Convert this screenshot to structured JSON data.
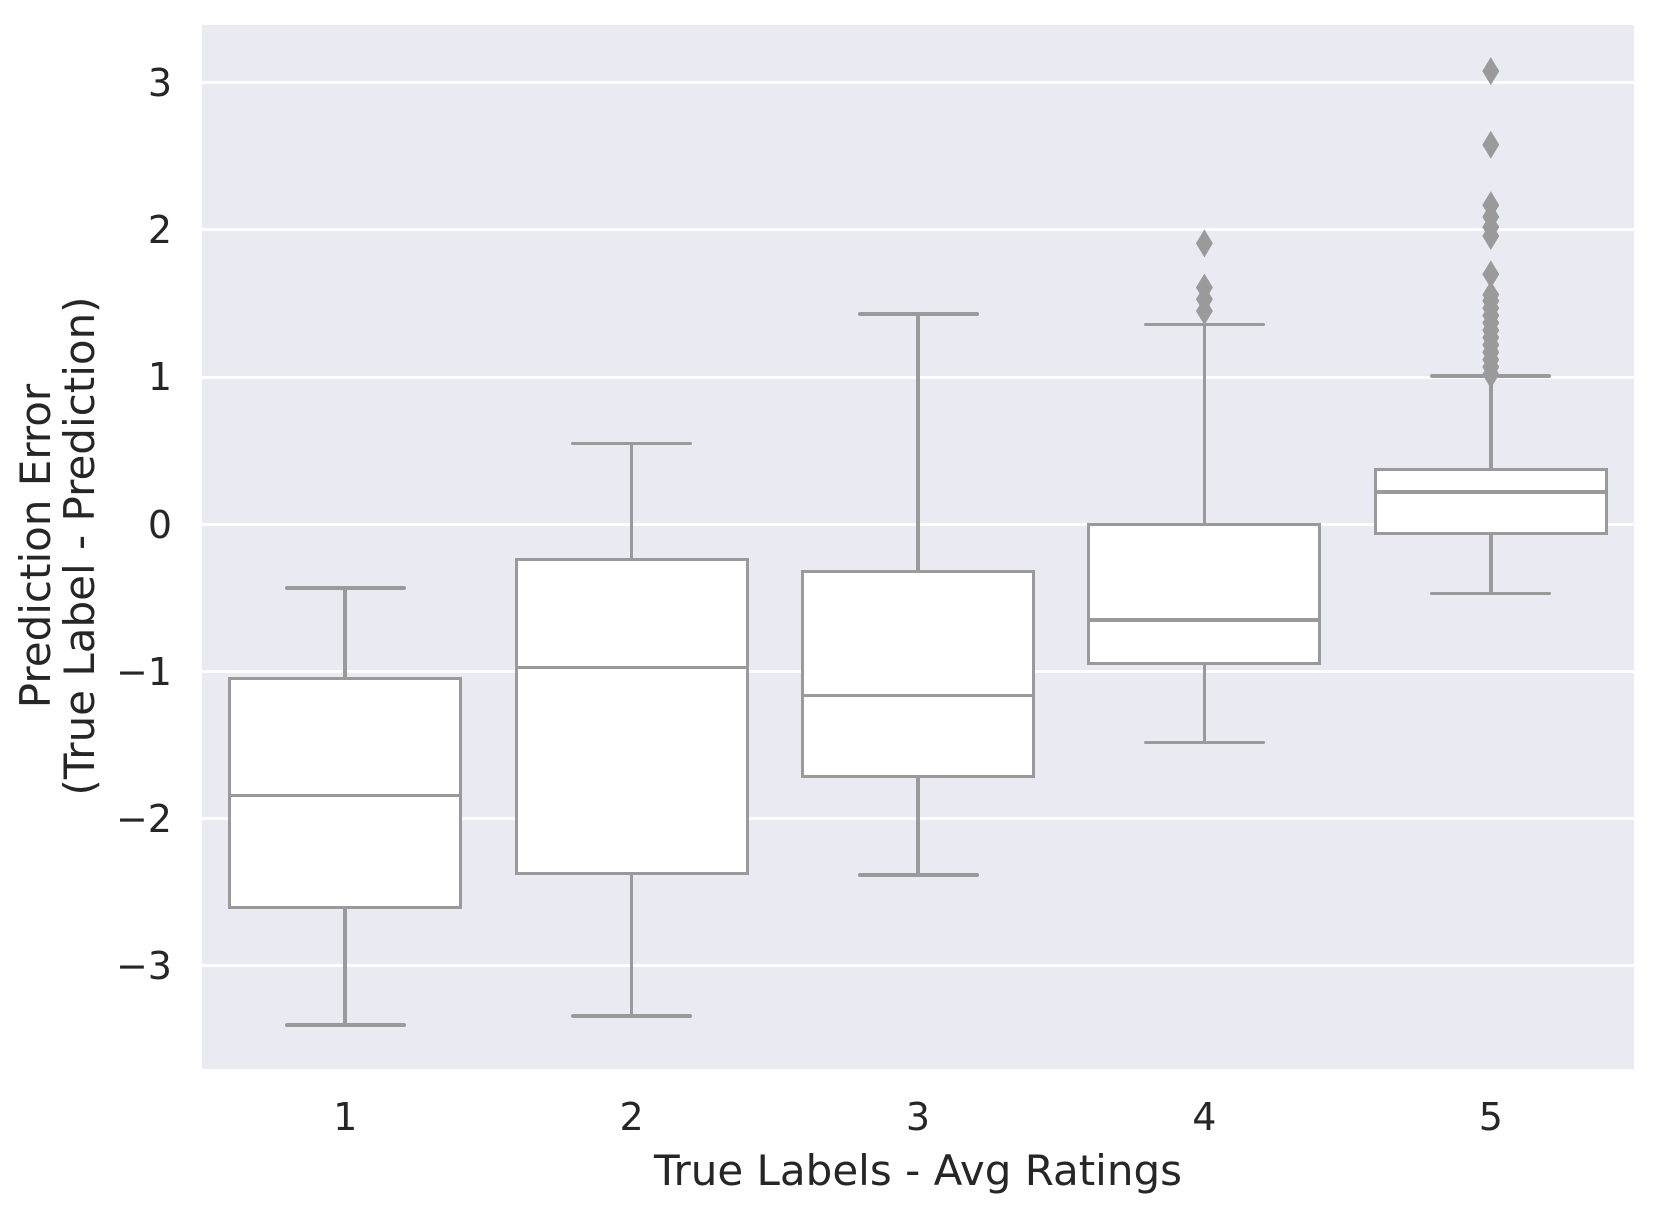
{
  "chart_data": {
    "type": "box",
    "title": "",
    "xlabel": "True Labels - Avg Ratings",
    "ylabel_line1": "Prediction Error",
    "ylabel_line2": "(True Label - Prediction)",
    "categories": [
      "1",
      "2",
      "3",
      "4",
      "5"
    ],
    "y_ticks": [
      3,
      2,
      1,
      0,
      -1,
      -2,
      -3
    ],
    "y_tick_labels": [
      "3",
      "2",
      "1",
      "0",
      "−1",
      "−2",
      "−3"
    ],
    "ylim": [
      -3.7,
      3.39
    ],
    "grid": "horizontal-white-on",
    "legend": "none",
    "boxes": [
      {
        "category": "1",
        "whisker_low": -3.4,
        "q1": -2.6,
        "median": -1.84,
        "q3": -1.05,
        "whisker_high": -0.43,
        "outliers": []
      },
      {
        "category": "2",
        "whisker_low": -3.34,
        "q1": -2.37,
        "median": -0.97,
        "q3": -0.24,
        "whisker_high": 0.55,
        "outliers": []
      },
      {
        "category": "3",
        "whisker_low": -2.38,
        "q1": -1.71,
        "median": -1.16,
        "q3": -0.32,
        "whisker_high": 1.43,
        "outliers": []
      },
      {
        "category": "4",
        "whisker_low": -1.48,
        "q1": -0.94,
        "median": -0.65,
        "q3": 0.0,
        "whisker_high": 1.36,
        "outliers": [
          1.45,
          1.53,
          1.61,
          1.91
        ]
      },
      {
        "category": "5",
        "whisker_low": -0.47,
        "q1": -0.06,
        "median": 0.22,
        "q3": 0.37,
        "whisker_high": 1.01,
        "outliers": [
          1.02,
          1.07,
          1.12,
          1.17,
          1.22,
          1.27,
          1.32,
          1.37,
          1.42,
          1.47,
          1.52,
          1.56,
          1.7,
          1.96,
          2.02,
          2.09,
          2.17,
          2.58,
          3.08
        ]
      }
    ],
    "colors": {
      "plot_bg": "#eaeaf2",
      "gridline": "#ffffff",
      "box_fill": "#ffffff",
      "box_edge": "#9a9a9a",
      "flier": "#9a9a9a",
      "text": "#262626"
    }
  }
}
